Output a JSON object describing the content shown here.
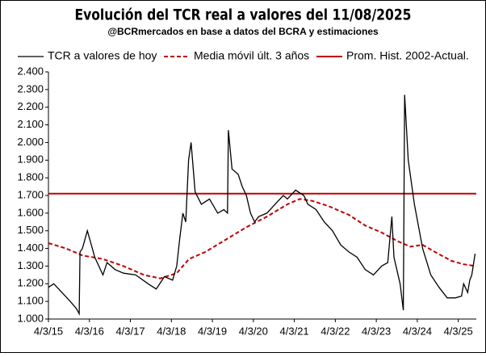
{
  "chart_data": {
    "type": "line",
    "title": "Evolución del TCR real a valores del 11/08/2025",
    "subtitle": "@BCRmercados  en base a datos del BCRA y estimaciones",
    "xlim": [
      2015.17,
      2025.61
    ],
    "xticks": [
      {
        "value": 2015.17,
        "label": "4/3/15"
      },
      {
        "value": 2016.17,
        "label": "4/3/16"
      },
      {
        "value": 2017.17,
        "label": "4/3/17"
      },
      {
        "value": 2018.17,
        "label": "4/3/18"
      },
      {
        "value": 2019.17,
        "label": "4/3/19"
      },
      {
        "value": 2020.17,
        "label": "4/3/20"
      },
      {
        "value": 2021.17,
        "label": "4/3/21"
      },
      {
        "value": 2022.17,
        "label": "4/3/22"
      },
      {
        "value": 2023.17,
        "label": "4/3/23"
      },
      {
        "value": 2024.17,
        "label": "4/3/24"
      },
      {
        "value": 2025.17,
        "label": "4/3/25"
      }
    ],
    "ylim": [
      1.0,
      2.4
    ],
    "yticks": [
      {
        "value": 1.0,
        "label": "1.000"
      },
      {
        "value": 1.1,
        "label": "1.100"
      },
      {
        "value": 1.2,
        "label": "1.200"
      },
      {
        "value": 1.3,
        "label": "1.300"
      },
      {
        "value": 1.4,
        "label": "1.400"
      },
      {
        "value": 1.5,
        "label": "1.500"
      },
      {
        "value": 1.6,
        "label": "1.600"
      },
      {
        "value": 1.7,
        "label": "1.700"
      },
      {
        "value": 1.8,
        "label": "1.800"
      },
      {
        "value": 1.9,
        "label": "1.900"
      },
      {
        "value": 2.0,
        "label": "2.000"
      },
      {
        "value": 2.1,
        "label": "2.100"
      },
      {
        "value": 2.2,
        "label": "2.200"
      },
      {
        "value": 2.3,
        "label": "2.300"
      },
      {
        "value": 2.4,
        "label": "2.400"
      }
    ],
    "series": [
      {
        "name": "TCR a valores de hoy",
        "color": "#000000",
        "dash": false,
        "width": 1.3,
        "x": [
          2015.17,
          2015.3,
          2015.5,
          2015.7,
          2015.85,
          2015.92,
          2015.94,
          2016.0,
          2016.12,
          2016.3,
          2016.5,
          2016.6,
          2016.8,
          2017.0,
          2017.3,
          2017.6,
          2017.8,
          2018.0,
          2018.2,
          2018.3,
          2018.37,
          2018.45,
          2018.52,
          2018.59,
          2018.65,
          2018.75,
          2018.9,
          2019.1,
          2019.3,
          2019.45,
          2019.54,
          2019.56,
          2019.65,
          2019.8,
          2019.9,
          2020.0,
          2020.1,
          2020.2,
          2020.3,
          2020.5,
          2020.7,
          2020.9,
          2021.0,
          2021.2,
          2021.4,
          2021.5,
          2021.7,
          2021.9,
          2022.1,
          2022.3,
          2022.5,
          2022.7,
          2022.9,
          2023.1,
          2023.3,
          2023.45,
          2023.55,
          2023.6,
          2023.75,
          2023.83,
          2023.86,
          2023.95,
          2024.1,
          2024.3,
          2024.5,
          2024.7,
          2024.9,
          2025.1,
          2025.25,
          2025.3,
          2025.4,
          2025.45,
          2025.5,
          2025.58
        ],
        "values": [
          1.18,
          1.2,
          1.15,
          1.1,
          1.06,
          1.03,
          1.38,
          1.4,
          1.5,
          1.35,
          1.25,
          1.32,
          1.28,
          1.26,
          1.25,
          1.2,
          1.17,
          1.24,
          1.22,
          1.3,
          1.45,
          1.6,
          1.55,
          1.9,
          2.0,
          1.72,
          1.65,
          1.68,
          1.6,
          1.62,
          1.6,
          2.07,
          1.85,
          1.82,
          1.75,
          1.7,
          1.6,
          1.55,
          1.58,
          1.6,
          1.65,
          1.7,
          1.68,
          1.73,
          1.7,
          1.65,
          1.62,
          1.55,
          1.5,
          1.42,
          1.38,
          1.35,
          1.28,
          1.25,
          1.3,
          1.32,
          1.58,
          1.35,
          1.2,
          1.05,
          2.27,
          1.9,
          1.65,
          1.4,
          1.25,
          1.18,
          1.12,
          1.12,
          1.13,
          1.2,
          1.15,
          1.22,
          1.25,
          1.37
        ]
      },
      {
        "name": "Media móvil últ. 3 años",
        "color": "#c00000",
        "dash": true,
        "width": 2,
        "x": [
          2015.17,
          2015.6,
          2016.0,
          2016.5,
          2017.0,
          2017.5,
          2017.9,
          2018.3,
          2018.6,
          2019.0,
          2019.5,
          2020.0,
          2020.5,
          2021.0,
          2021.3,
          2021.6,
          2022.0,
          2022.5,
          2022.9,
          2023.3,
          2023.7,
          2024.0,
          2024.3,
          2024.6,
          2025.0,
          2025.3,
          2025.6
        ],
        "values": [
          1.43,
          1.4,
          1.36,
          1.34,
          1.3,
          1.25,
          1.23,
          1.26,
          1.34,
          1.38,
          1.45,
          1.52,
          1.58,
          1.65,
          1.68,
          1.67,
          1.64,
          1.59,
          1.53,
          1.49,
          1.44,
          1.41,
          1.42,
          1.38,
          1.33,
          1.31,
          1.3
        ]
      },
      {
        "name": "Prom. Hist. 2002-Actual.",
        "color": "#c00000",
        "dash": false,
        "width": 2,
        "x": [
          2015.17,
          2025.61
        ],
        "values": [
          1.71,
          1.71
        ]
      }
    ]
  }
}
